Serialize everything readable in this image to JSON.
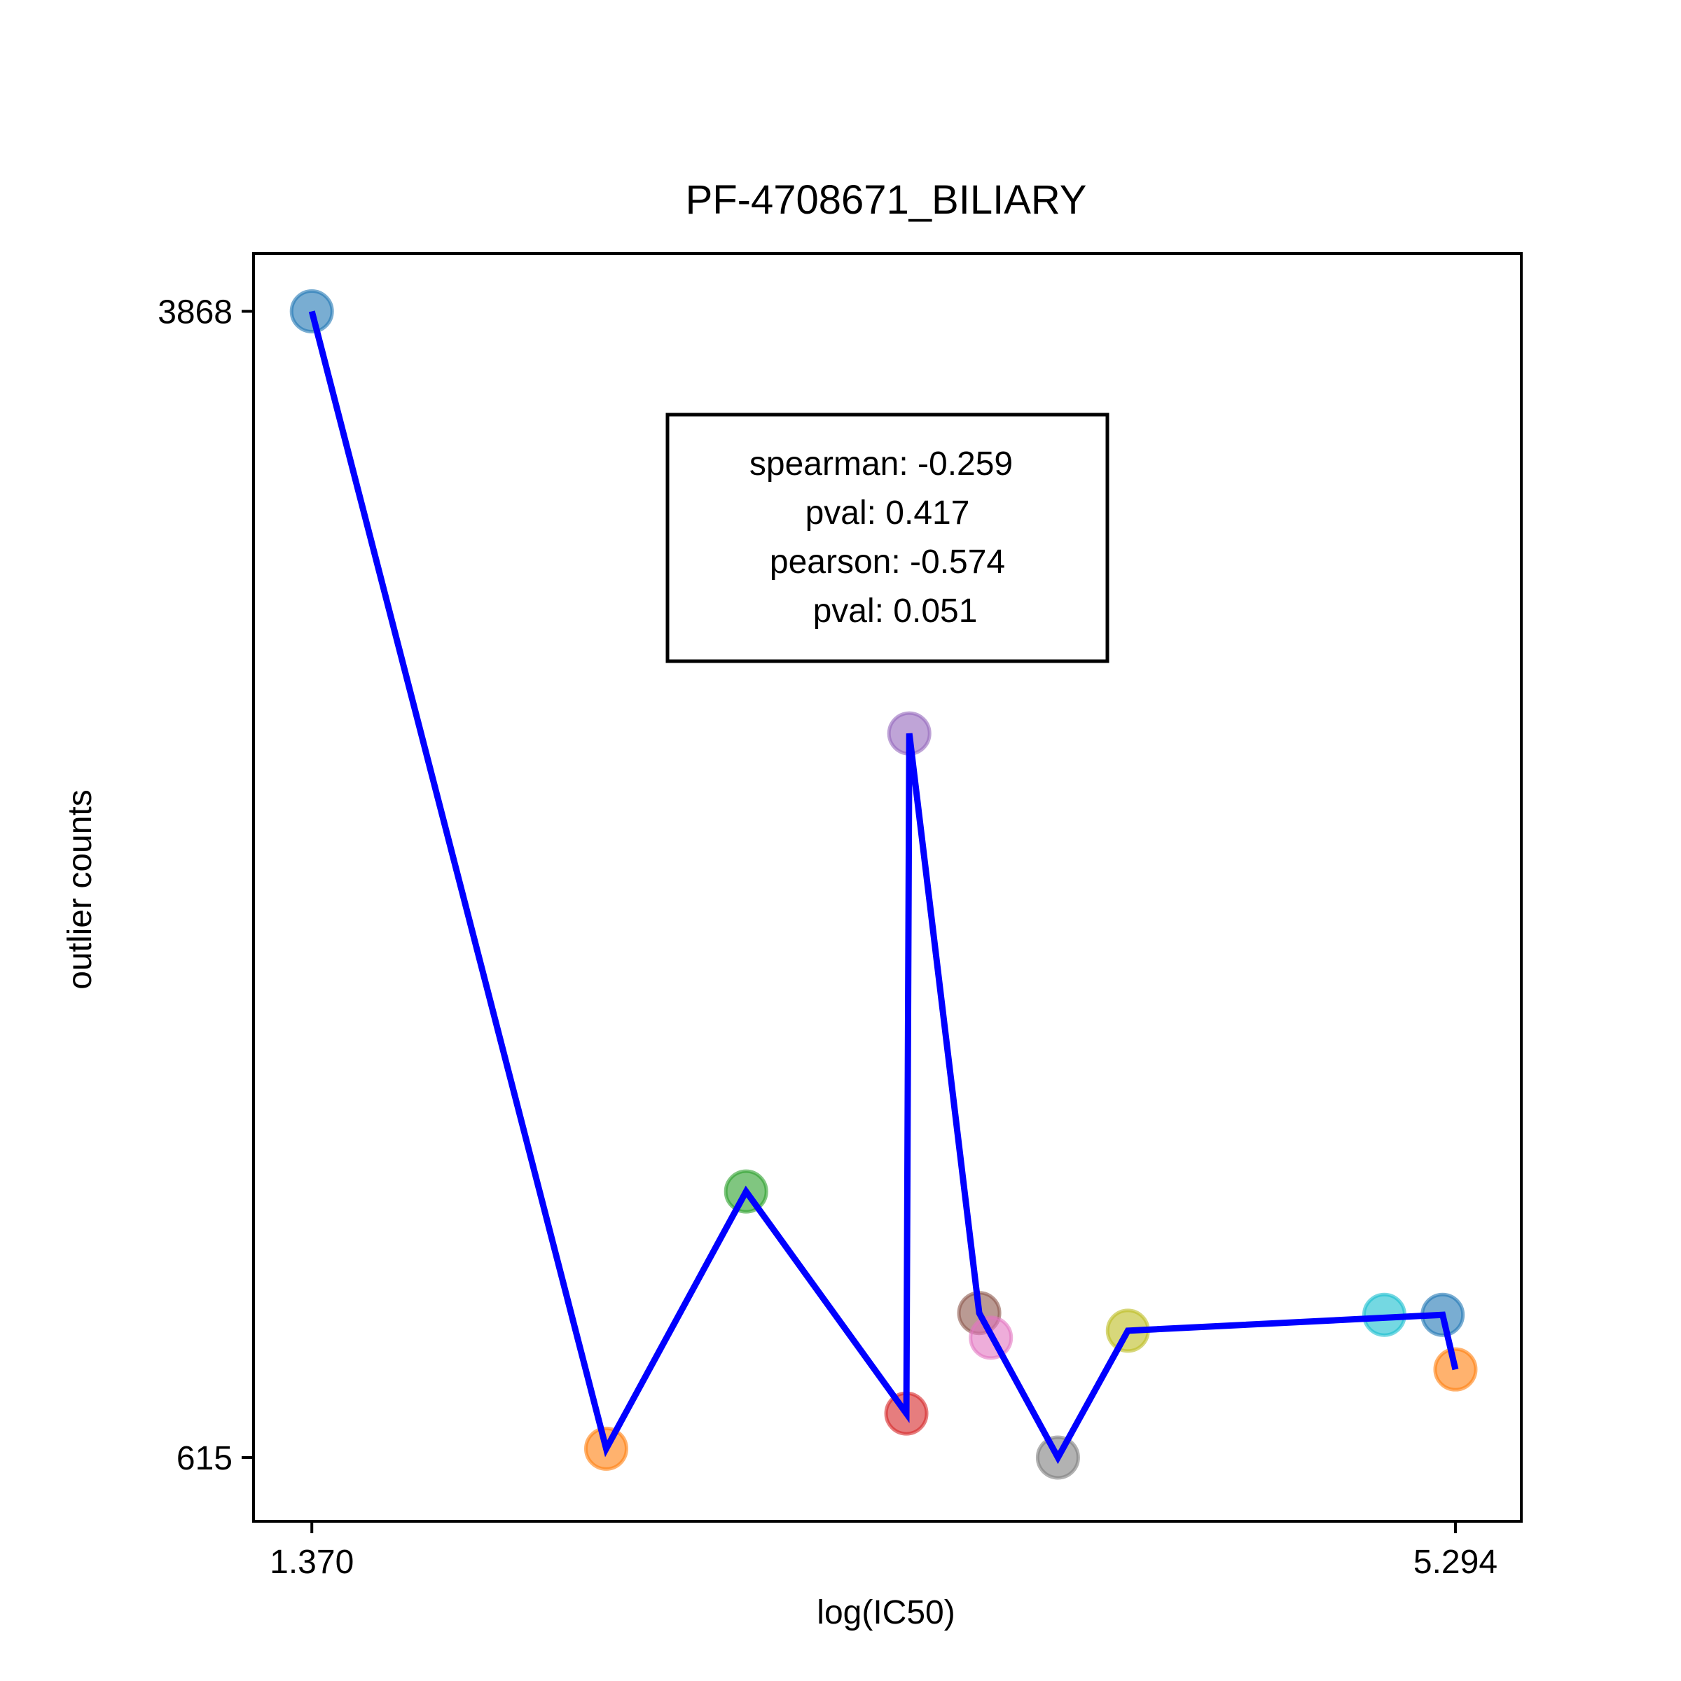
{
  "chart_data": {
    "type": "scatter",
    "title": "PF-4708671_BILIARY",
    "xlabel": "log(IC50)",
    "ylabel": "outlier counts",
    "xlim": [
      1.17,
      5.52
    ],
    "ylim": [
      434,
      4032
    ],
    "x_ticks": [
      {
        "value": 1.37,
        "label": "1.370"
      },
      {
        "value": 5.294,
        "label": "5.294"
      }
    ],
    "y_ticks": [
      {
        "value": 3868,
        "label": "3868"
      },
      {
        "value": 615,
        "label": "615"
      }
    ],
    "grid": false,
    "points": [
      {
        "x": 1.37,
        "y": 3868,
        "color": "#1f77b4"
      },
      {
        "x": 2.38,
        "y": 640,
        "color": "#ff7f0e"
      },
      {
        "x": 2.86,
        "y": 1370,
        "color": "#2ca02c"
      },
      {
        "x": 3.41,
        "y": 740,
        "color": "#d62728"
      },
      {
        "x": 3.42,
        "y": 2670,
        "color": "#9467bd"
      },
      {
        "x": 3.66,
        "y": 1025,
        "color": "#8c564b"
      },
      {
        "x": 3.7,
        "y": 955,
        "color": "#e377c2"
      },
      {
        "x": 3.93,
        "y": 615,
        "color": "#7f7f7f"
      },
      {
        "x": 4.17,
        "y": 975,
        "color": "#bcbd22"
      },
      {
        "x": 5.05,
        "y": 1020,
        "color": "#17becf"
      },
      {
        "x": 5.25,
        "y": 1020,
        "color": "#1f77b4"
      },
      {
        "x": 5.294,
        "y": 865,
        "color": "#ff7f0e"
      }
    ],
    "line": {
      "color": "#0000ff",
      "points": [
        [
          1.37,
          3868
        ],
        [
          2.38,
          640
        ],
        [
          2.86,
          1370
        ],
        [
          3.41,
          740
        ],
        [
          3.42,
          2670
        ],
        [
          3.66,
          1025
        ],
        [
          3.93,
          615
        ],
        [
          4.17,
          975
        ],
        [
          5.25,
          1020
        ],
        [
          5.294,
          865
        ]
      ]
    },
    "annotation": {
      "lines": [
        "spearman: -0.259",
        "pval: 0.417",
        "pearson: -0.574",
        "pval: 0.051"
      ]
    }
  }
}
